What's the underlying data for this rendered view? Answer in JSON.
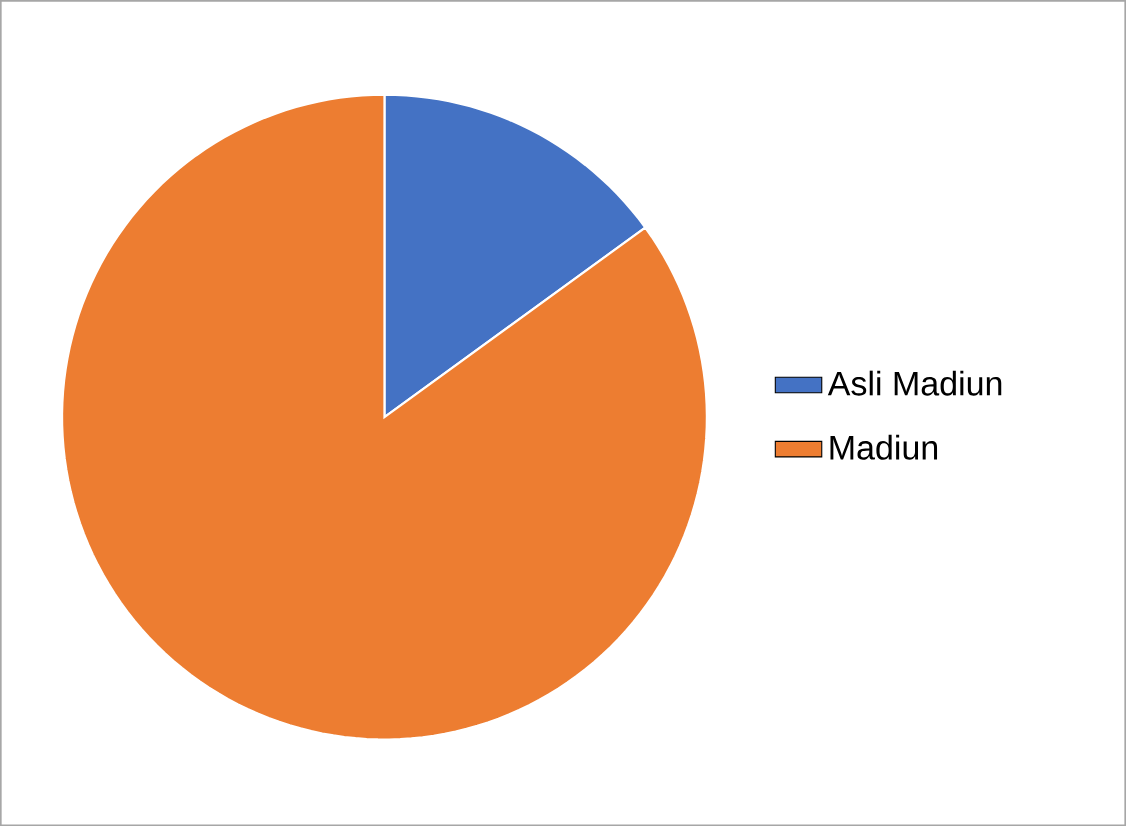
{
  "chart_data": {
    "type": "pie",
    "categories": [
      "Asli Madiun",
      "Madiun"
    ],
    "values": [
      15,
      85
    ],
    "colors": [
      "#4472c4",
      "#ed7d31"
    ],
    "legend": "right"
  }
}
